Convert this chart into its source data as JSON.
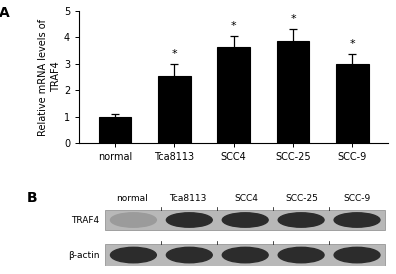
{
  "categories": [
    "normal",
    "Tca8113",
    "SCC4",
    "SCC-25",
    "SCC-9"
  ],
  "values": [
    1.0,
    2.55,
    3.65,
    3.85,
    3.0
  ],
  "errors": [
    0.12,
    0.45,
    0.42,
    0.48,
    0.38
  ],
  "bar_color": "#000000",
  "bar_width": 0.55,
  "ylim": [
    0,
    5
  ],
  "yticks": [
    0,
    1,
    2,
    3,
    4,
    5
  ],
  "ylabel": "Relative mRNA levels of\nTRAF4",
  "panel_A_label": "A",
  "panel_B_label": "B",
  "star_indices": [
    1,
    2,
    3,
    4
  ],
  "western_col_labels": [
    "normal",
    "Tca8113",
    "SCC4",
    "SCC-25",
    "SCC-9"
  ],
  "gene_labels": [
    "TRAF4",
    "β-actin"
  ],
  "bg_color": "#ffffff",
  "text_color": "#000000",
  "traf4_intensities": [
    0.18,
    0.88,
    0.88,
    0.88,
    0.88
  ],
  "beta_intensities": [
    0.88,
    0.88,
    0.88,
    0.88,
    0.88
  ],
  "wb_bg_color": "#b8b8b8",
  "wb_band_dark": "#1a1a1a",
  "wb_band_light": "#888888"
}
